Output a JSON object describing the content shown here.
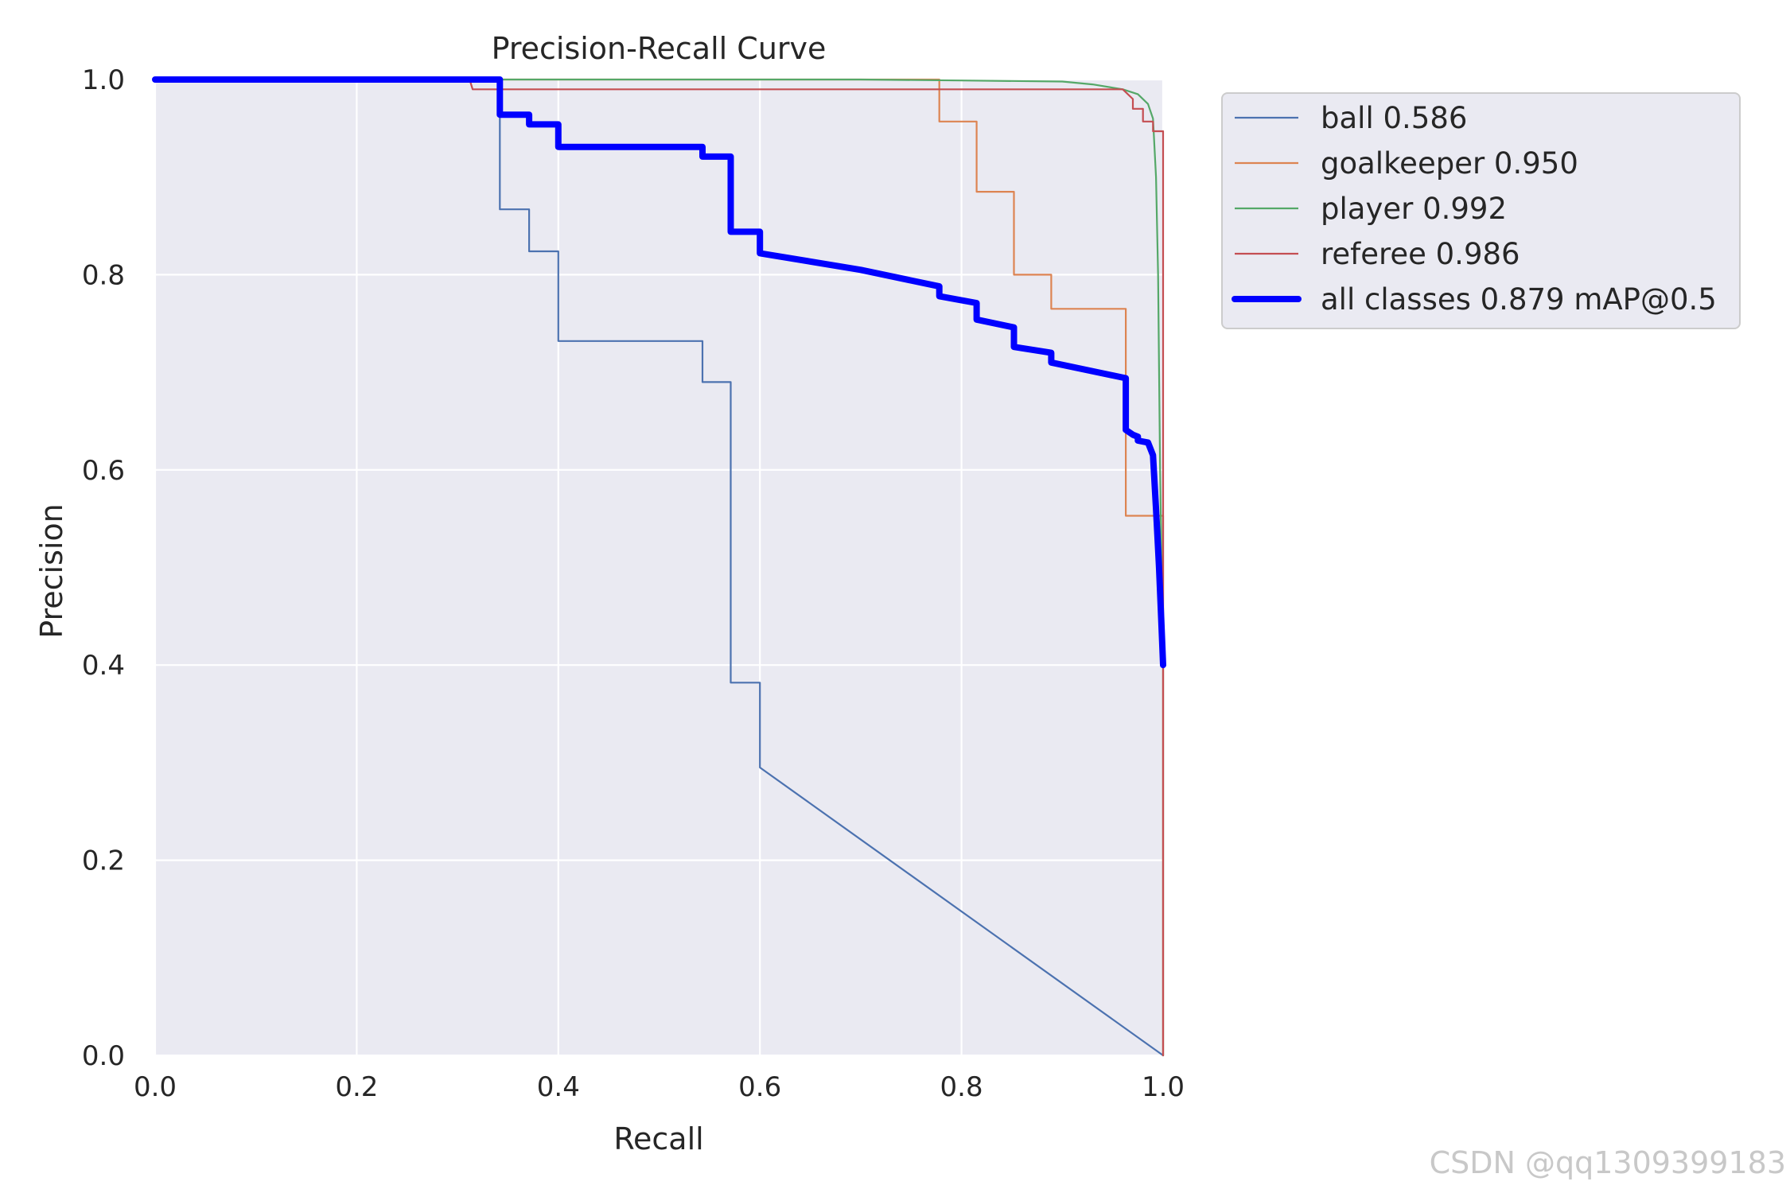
{
  "chart_data": {
    "type": "line",
    "title": "Precision-Recall Curve",
    "xlabel": "Recall",
    "ylabel": "Precision",
    "xlim": [
      0,
      1
    ],
    "ylim": [
      0,
      1
    ],
    "x_ticks": [
      "0.0",
      "0.2",
      "0.4",
      "0.6",
      "0.8",
      "1.0"
    ],
    "y_ticks": [
      "0.0",
      "0.2",
      "0.4",
      "0.6",
      "0.8",
      "1.0"
    ],
    "grid": true,
    "legend_position": "outside-right-top",
    "background_color": "#eaeaf2",
    "series": [
      {
        "name": "ball 0.586",
        "color": "#4c72b0",
        "emphasis": "thin",
        "x": [
          0.0,
          0.342,
          0.342,
          0.371,
          0.371,
          0.4,
          0.4,
          0.543,
          0.543,
          0.571,
          0.571,
          0.6,
          0.6,
          0.6,
          1.0,
          1.0
        ],
        "y": [
          1.0,
          1.0,
          0.867,
          0.867,
          0.824,
          0.824,
          0.732,
          0.732,
          0.69,
          0.69,
          0.382,
          0.382,
          0.3,
          0.295,
          0.0,
          0.0
        ]
      },
      {
        "name": "goalkeeper 0.950",
        "color": "#dd8452",
        "emphasis": "thin",
        "x": [
          0.0,
          0.778,
          0.778,
          0.815,
          0.815,
          0.852,
          0.852,
          0.889,
          0.889,
          0.963,
          0.963,
          1.0,
          1.0
        ],
        "y": [
          1.0,
          1.0,
          0.957,
          0.957,
          0.885,
          0.885,
          0.8,
          0.8,
          0.765,
          0.765,
          0.553,
          0.553,
          0.0
        ]
      },
      {
        "name": "player 0.992",
        "color": "#55a868",
        "emphasis": "thin",
        "x": [
          0.0,
          0.7,
          0.8,
          0.9,
          0.93,
          0.96,
          0.975,
          0.985,
          0.99,
          0.993,
          0.995,
          0.997,
          1.0,
          1.0
        ],
        "y": [
          1.0,
          1.0,
          0.999,
          0.998,
          0.995,
          0.99,
          0.985,
          0.975,
          0.96,
          0.9,
          0.8,
          0.6,
          0.4,
          0.0
        ]
      },
      {
        "name": "referee 0.986",
        "color": "#c44e52",
        "emphasis": "thin",
        "x": [
          0.0,
          0.312,
          0.315,
          0.96,
          0.97,
          0.97,
          0.98,
          0.98,
          0.99,
          0.99,
          1.0,
          1.0
        ],
        "y": [
          1.0,
          1.0,
          0.99,
          0.99,
          0.98,
          0.97,
          0.97,
          0.957,
          0.957,
          0.947,
          0.947,
          0.0
        ]
      },
      {
        "name": "all classes 0.879 mAP@0.5",
        "color": "#0000ff",
        "emphasis": "thick",
        "x": [
          0.0,
          0.342,
          0.342,
          0.371,
          0.371,
          0.4,
          0.4,
          0.543,
          0.543,
          0.571,
          0.571,
          0.6,
          0.6,
          0.7,
          0.778,
          0.778,
          0.815,
          0.815,
          0.852,
          0.852,
          0.889,
          0.889,
          0.963,
          0.963,
          0.97,
          0.975,
          0.975,
          0.985,
          0.99,
          0.993,
          0.996,
          0.998,
          1.0
        ],
        "y": [
          1.0,
          1.0,
          0.964,
          0.964,
          0.954,
          0.954,
          0.931,
          0.931,
          0.921,
          0.921,
          0.844,
          0.844,
          0.822,
          0.805,
          0.788,
          0.778,
          0.771,
          0.754,
          0.746,
          0.726,
          0.72,
          0.71,
          0.694,
          0.641,
          0.636,
          0.634,
          0.63,
          0.628,
          0.615,
          0.56,
          0.5,
          0.45,
          0.4
        ]
      }
    ]
  },
  "watermark": "CSDN @qq1309399183"
}
